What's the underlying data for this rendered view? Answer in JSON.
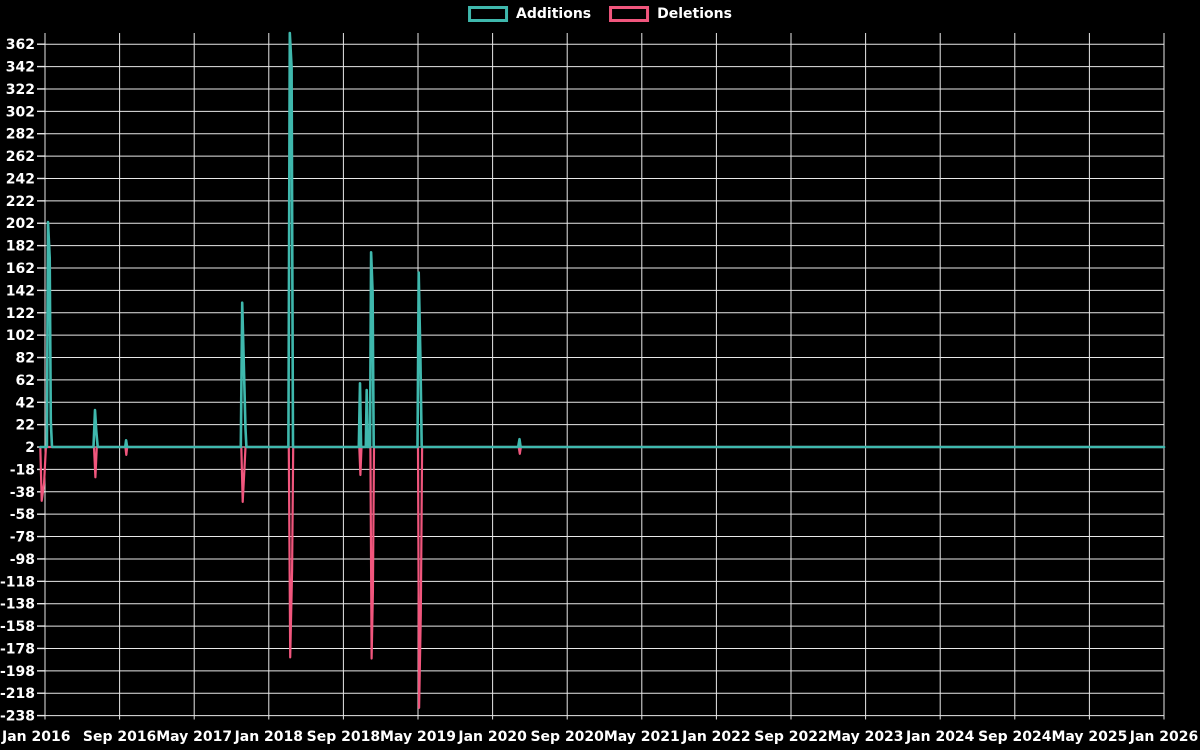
{
  "legend": {
    "items": [
      {
        "label": "Additions",
        "color": "#3fb8ad"
      },
      {
        "label": "Deletions",
        "color": "#f1567d"
      }
    ]
  },
  "chart_data": {
    "type": "line",
    "background": "#000000",
    "grid": true,
    "grid_color": "#e8e8e8",
    "text_color": "#ffffff",
    "legend_position": "top-center",
    "x_axis": {
      "tick_labels": [
        "Jan 2016",
        "Sep 2016",
        "May 2017",
        "Jan 2018",
        "Sep 2018",
        "May 2019",
        "Jan 2020",
        "Sep 2020",
        "May 2021",
        "Jan 2022",
        "Sep 2022",
        "May 2023",
        "Jan 2024",
        "Sep 2024",
        "May 2025",
        "Jan 2026"
      ],
      "tick_interval_months": 8,
      "range_months": [
        0,
        120
      ]
    },
    "y_axis": {
      "min": -238,
      "max": 362,
      "tick_step": 20,
      "tick_labels": [
        "362",
        "342",
        "322",
        "302",
        "282",
        "262",
        "242",
        "222",
        "202",
        "182",
        "162",
        "142",
        "122",
        "102",
        "82",
        "62",
        "42",
        "22",
        "2",
        "-18",
        "-38",
        "-58",
        "-78",
        "-98",
        "-118",
        "-138",
        "-158",
        "-178",
        "-198",
        "-218",
        "-238"
      ]
    },
    "baseline_value": 2,
    "series": [
      {
        "name": "Additions",
        "color": "#3fb8ad",
        "stroke_width": 2.6,
        "points": [
          [
            -0.5,
            2
          ],
          [
            0.2,
            2
          ],
          [
            0.32,
            203
          ],
          [
            0.5,
            171
          ],
          [
            0.62,
            25
          ],
          [
            0.75,
            2
          ],
          [
            5.2,
            2
          ],
          [
            5.36,
            35
          ],
          [
            5.5,
            16
          ],
          [
            5.65,
            2
          ],
          [
            8.6,
            2
          ],
          [
            8.7,
            8
          ],
          [
            8.8,
            2
          ],
          [
            21.0,
            2
          ],
          [
            21.15,
            131
          ],
          [
            21.35,
            66
          ],
          [
            21.5,
            18
          ],
          [
            21.6,
            2
          ],
          [
            26.1,
            2
          ],
          [
            26.25,
            372
          ],
          [
            26.45,
            341
          ],
          [
            26.6,
            2
          ],
          [
            33.65,
            2
          ],
          [
            33.78,
            59
          ],
          [
            33.9,
            2
          ],
          [
            34.4,
            2
          ],
          [
            34.5,
            53
          ],
          [
            34.62,
            2
          ],
          [
            34.85,
            2
          ],
          [
            34.97,
            176
          ],
          [
            35.13,
            140
          ],
          [
            35.25,
            2
          ],
          [
            39.95,
            2
          ],
          [
            40.08,
            158
          ],
          [
            40.26,
            82
          ],
          [
            40.4,
            2
          ],
          [
            50.75,
            2
          ],
          [
            50.88,
            9
          ],
          [
            51.0,
            2
          ],
          [
            120,
            2
          ]
        ]
      },
      {
        "name": "Deletions",
        "color": "#f1567d",
        "stroke_width": 2.2,
        "points": [
          [
            -0.5,
            2
          ],
          [
            -0.35,
            -46
          ],
          [
            -0.1,
            -30
          ],
          [
            0.1,
            2
          ],
          [
            5.25,
            2
          ],
          [
            5.4,
            -25
          ],
          [
            5.55,
            2
          ],
          [
            8.62,
            2
          ],
          [
            8.72,
            -5
          ],
          [
            8.82,
            2
          ],
          [
            21.05,
            2
          ],
          [
            21.2,
            -47
          ],
          [
            21.38,
            -18
          ],
          [
            21.5,
            2
          ],
          [
            26.15,
            2
          ],
          [
            26.3,
            -186
          ],
          [
            26.5,
            -108
          ],
          [
            26.62,
            2
          ],
          [
            33.7,
            2
          ],
          [
            33.82,
            -23
          ],
          [
            33.94,
            2
          ],
          [
            34.9,
            2
          ],
          [
            35.02,
            -187
          ],
          [
            35.16,
            -128
          ],
          [
            35.28,
            2
          ],
          [
            40.0,
            2
          ],
          [
            40.12,
            -231
          ],
          [
            40.3,
            -148
          ],
          [
            40.44,
            2
          ],
          [
            50.8,
            2
          ],
          [
            50.92,
            -4
          ],
          [
            51.04,
            2
          ],
          [
            120,
            2
          ]
        ]
      }
    ]
  }
}
